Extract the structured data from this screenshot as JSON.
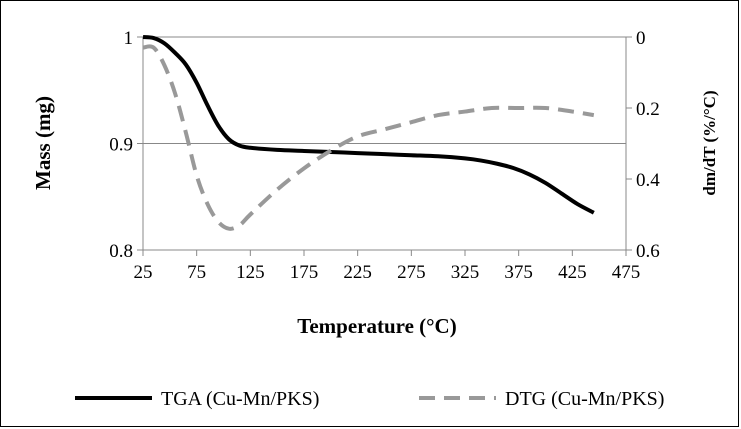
{
  "chart_data": {
    "type": "line",
    "title": "",
    "xlabel": "Temperature (°C)",
    "ylabel": "Mass (mg)",
    "y2label": "dm/dT (%/°C)",
    "xlim": [
      25,
      475
    ],
    "ylim": [
      0.8,
      1.0
    ],
    "y2lim": [
      0.6,
      0
    ],
    "x_ticks": [
      25,
      75,
      125,
      175,
      225,
      275,
      325,
      375,
      425,
      475
    ],
    "y_ticks": [
      0.8,
      0.9,
      1.0
    ],
    "y_tick_labels": [
      "0.8",
      "0.9",
      "1"
    ],
    "y2_ticks": [
      0,
      0.2,
      0.4,
      0.6
    ],
    "y2_tick_labels": [
      "0",
      "0.2",
      "0.4",
      "0.6"
    ],
    "grid": "horizontal",
    "legend_position": "bottom",
    "series": [
      {
        "name": "TGA (Cu-Mn/PKS)",
        "axis": "left",
        "color": "#000000",
        "style": "solid",
        "x": [
          25,
          35,
          45,
          55,
          65,
          75,
          85,
          95,
          105,
          115,
          125,
          150,
          175,
          200,
          225,
          250,
          275,
          300,
          325,
          340,
          355,
          370,
          385,
          400,
          415,
          430,
          445
        ],
        "y": [
          1.0,
          0.999,
          0.994,
          0.985,
          0.974,
          0.957,
          0.936,
          0.917,
          0.904,
          0.898,
          0.896,
          0.894,
          0.893,
          0.892,
          0.891,
          0.89,
          0.889,
          0.888,
          0.886,
          0.884,
          0.881,
          0.877,
          0.871,
          0.863,
          0.853,
          0.843,
          0.835
        ]
      },
      {
        "name": "DTG (Cu-Mn/PKS)",
        "axis": "right",
        "color": "#999999",
        "style": "dashed",
        "x": [
          25,
          35,
          45,
          55,
          65,
          75,
          85,
          95,
          105,
          115,
          125,
          150,
          175,
          200,
          225,
          250,
          275,
          300,
          325,
          350,
          375,
          400,
          425,
          445
        ],
        "y": [
          0.03,
          0.03,
          0.08,
          0.16,
          0.27,
          0.39,
          0.47,
          0.52,
          0.54,
          0.53,
          0.5,
          0.43,
          0.37,
          0.32,
          0.28,
          0.26,
          0.24,
          0.22,
          0.21,
          0.2,
          0.2,
          0.2,
          0.21,
          0.22
        ]
      }
    ]
  }
}
